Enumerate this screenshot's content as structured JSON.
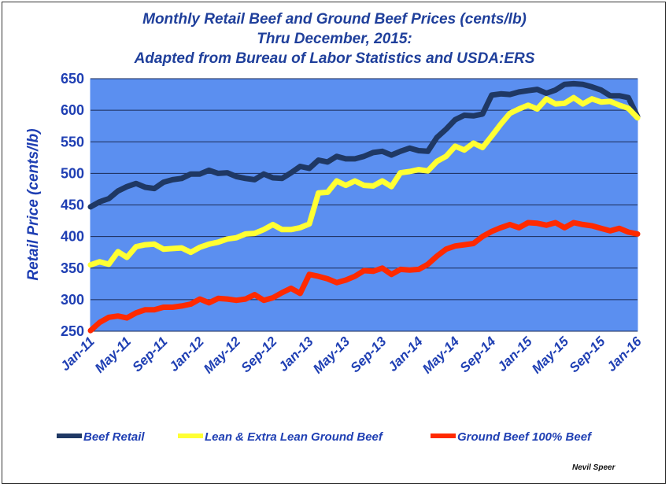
{
  "chart_data": {
    "type": "line",
    "title": [
      "Monthly Retail Beef and Ground Beef Prices (cents/lb)",
      "Thru December, 2015:",
      "Adapted from Bureau of Labor Statistics and USDA:ERS"
    ],
    "xlabel": "",
    "ylabel": "Retail Price (cents/lb)",
    "ylim": [
      250,
      650
    ],
    "yticks": [
      250,
      300,
      350,
      400,
      450,
      500,
      550,
      600,
      650
    ],
    "xtick_labels": [
      "Jan-11",
      "May-11",
      "Sep-11",
      "Jan-12",
      "May-12",
      "Sep-12",
      "Jan-13",
      "May-13",
      "Sep-13",
      "Jan-14",
      "May-14",
      "Sep-14",
      "Jan-15",
      "May-15",
      "Sep-15",
      "Jan-16"
    ],
    "xtick_step_months": 4,
    "grid": true,
    "plot_background": "#5b8ff0",
    "legend_position": "bottom",
    "series": [
      {
        "name": "Beef Retail",
        "color": "#1f3864",
        "values": [
          447,
          455,
          460,
          472,
          479,
          484,
          478,
          476,
          486,
          490,
          492,
          499,
          499,
          505,
          500,
          501,
          495,
          492,
          490,
          499,
          493,
          492,
          501,
          511,
          508,
          521,
          518,
          527,
          523,
          523,
          527,
          533,
          535,
          529,
          535,
          540,
          536,
          535,
          557,
          570,
          585,
          592,
          591,
          594,
          624,
          626,
          625,
          629,
          631,
          633,
          627,
          632,
          641,
          642,
          641,
          637,
          632,
          623,
          623,
          620,
          590
        ]
      },
      {
        "name": "Lean & Extra Lean Ground Beef",
        "color": "#ffff33",
        "values": [
          355,
          360,
          356,
          376,
          367,
          384,
          387,
          388,
          380,
          381,
          382,
          375,
          383,
          388,
          391,
          396,
          398,
          404,
          405,
          411,
          419,
          411,
          411,
          414,
          420,
          469,
          470,
          488,
          481,
          488,
          481,
          480,
          488,
          479,
          501,
          503,
          506,
          504,
          519,
          527,
          543,
          537,
          548,
          541,
          559,
          578,
          595,
          602,
          608,
          602,
          618,
          610,
          611,
          620,
          610,
          618,
          613,
          614,
          608,
          603,
          588
        ]
      },
      {
        "name": "Ground Beef 100% Beef",
        "color": "#ff2a00",
        "values": [
          251,
          264,
          272,
          274,
          271,
          279,
          284,
          284,
          288,
          288,
          290,
          293,
          301,
          295,
          302,
          301,
          299,
          301,
          308,
          299,
          303,
          311,
          318,
          310,
          340,
          337,
          333,
          327,
          331,
          337,
          346,
          345,
          350,
          340,
          348,
          347,
          348,
          356,
          369,
          380,
          385,
          387,
          389,
          400,
          408,
          414,
          419,
          414,
          422,
          421,
          418,
          422,
          414,
          422,
          419,
          417,
          413,
          409,
          413,
          407,
          404
        ]
      }
    ]
  },
  "credit": "Nevil Speer",
  "colors": {
    "title": "#1f3f9b",
    "axis_text": "#1f3fb3",
    "gridline": "#1a2a55"
  }
}
